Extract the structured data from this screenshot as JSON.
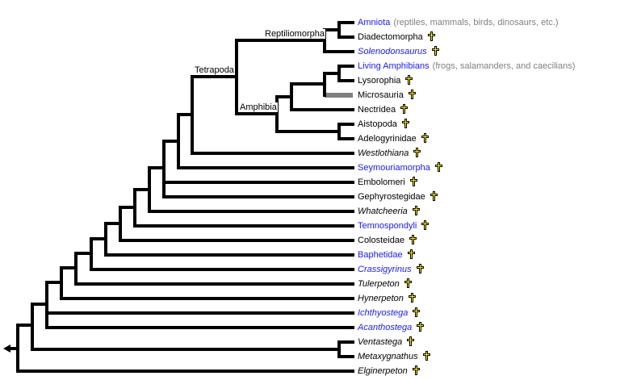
{
  "clades": {
    "reptiliomorpha": "Reptiliomorpha",
    "tetrapoda": "Tetrapoda",
    "amphibia": "Amphibia"
  },
  "colors": {
    "link": "#1a1aff",
    "note": "#808080",
    "dagger": "#ffee00"
  },
  "leaves": [
    {
      "name": "Amniota",
      "link": true,
      "italic": false,
      "extinct": false,
      "note": "(reptiles, mammals, birds, dinosaurs, etc.)"
    },
    {
      "name": "Diadectomorpha",
      "link": false,
      "italic": false,
      "extinct": true
    },
    {
      "name": "Solenodonsaurus",
      "link": true,
      "italic": true,
      "extinct": true
    },
    {
      "name": "Living Amphibians",
      "link": true,
      "italic": false,
      "extinct": false,
      "note": "(frogs, salamanders, and caecilians)"
    },
    {
      "name": "Lysorophia",
      "link": false,
      "italic": false,
      "extinct": true
    },
    {
      "name": "Microsauria",
      "link": false,
      "italic": false,
      "extinct": true
    },
    {
      "name": "Nectridea",
      "link": false,
      "italic": false,
      "extinct": true
    },
    {
      "name": "Aistopoda",
      "link": false,
      "italic": false,
      "extinct": true
    },
    {
      "name": "Adelogyrinidae",
      "link": false,
      "italic": false,
      "extinct": true
    },
    {
      "name": "Westlothiana",
      "link": false,
      "italic": true,
      "extinct": true
    },
    {
      "name": "Seymouriamorpha",
      "link": true,
      "italic": false,
      "extinct": true
    },
    {
      "name": "Embolomeri",
      "link": false,
      "italic": false,
      "extinct": true
    },
    {
      "name": "Gephyrostegidae",
      "link": false,
      "italic": false,
      "extinct": true
    },
    {
      "name": "Whatcheeria",
      "link": false,
      "italic": true,
      "extinct": true
    },
    {
      "name": "Temnospondyli",
      "link": true,
      "italic": false,
      "extinct": true
    },
    {
      "name": "Colosteidae",
      "link": false,
      "italic": false,
      "extinct": true
    },
    {
      "name": "Baphetidae",
      "link": true,
      "italic": false,
      "extinct": true
    },
    {
      "name": "Crassigyrinus",
      "link": true,
      "italic": true,
      "extinct": true
    },
    {
      "name": "Tulerpeton",
      "link": false,
      "italic": true,
      "extinct": true
    },
    {
      "name": "Hynerpeton",
      "link": false,
      "italic": true,
      "extinct": true
    },
    {
      "name": "Ichthyostega",
      "link": true,
      "italic": true,
      "extinct": true
    },
    {
      "name": "Acanthostega",
      "link": true,
      "italic": true,
      "extinct": true
    },
    {
      "name": "Ventastega",
      "link": false,
      "italic": true,
      "extinct": true
    },
    {
      "name": "Metaxygnathus",
      "link": false,
      "italic": true,
      "extinct": true
    },
    {
      "name": "Elginerpeton",
      "link": false,
      "italic": true,
      "extinct": true
    }
  ]
}
